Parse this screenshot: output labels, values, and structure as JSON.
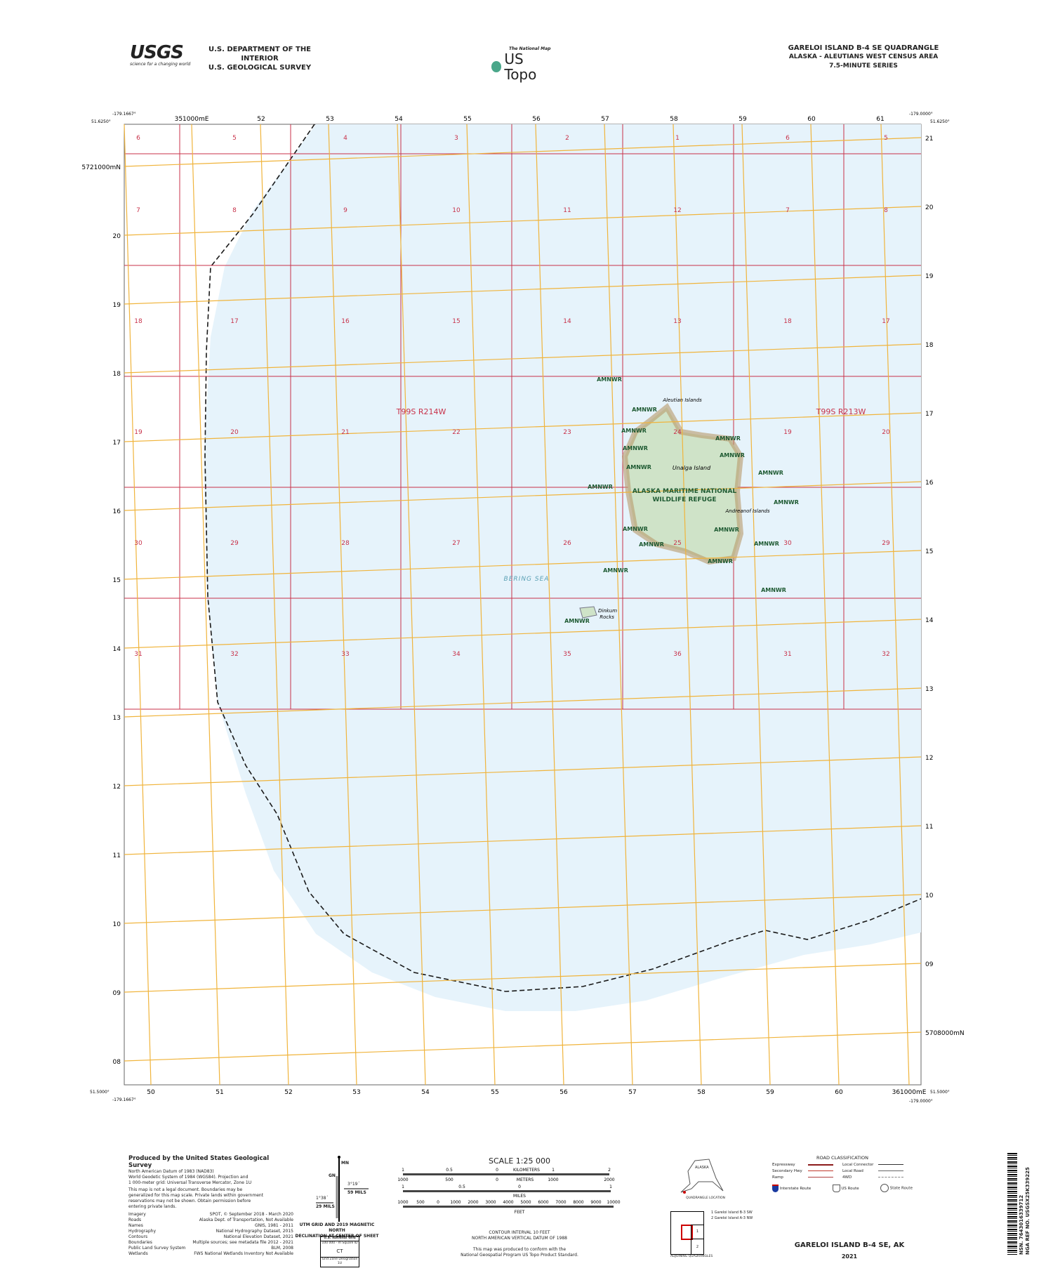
{
  "header": {
    "usgs_logo": "USGS",
    "usgs_tagline": "science for a changing world",
    "dept": "U.S. DEPARTMENT OF THE INTERIOR",
    "survey": "U.S. GEOLOGICAL SURVEY",
    "ustopo_small": "The National Map",
    "ustopo": "US Topo",
    "title": "GARELOI ISLAND B-4 SE QUADRANGLE",
    "subtitle": "ALASKA - ALEUTIANS WEST CENSUS AREA",
    "series": "7.5-MINUTE SERIES"
  },
  "corners": {
    "top_left_lon": "-179.1667°",
    "top_left_lat": "51.6250°",
    "top_right_lon": "-179.0000°",
    "top_right_lat": "51.6250°",
    "bottom_left_lat": "51.5000°",
    "bottom_left_lon": "-179.1667°",
    "bottom_right_lon": "-179.0000°",
    "bottom_right_lat": "51.5000°"
  },
  "grid": {
    "top_eastings": [
      "351000mE",
      "52",
      "53",
      "54",
      "55",
      "56",
      "57",
      "58",
      "59",
      "60",
      "61"
    ],
    "bottom_eastings": [
      "50",
      "51",
      "52",
      "53",
      "54",
      "55",
      "56",
      "57",
      "58",
      "59",
      "60",
      "361000mE"
    ],
    "right_northings": [
      "21",
      "20",
      "19",
      "18",
      "17",
      "16",
      "15",
      "14",
      "13",
      "12",
      "11",
      "10",
      "09",
      "5708000mN"
    ],
    "left_northings": [
      "5721000mN",
      "20",
      "19",
      "18",
      "17",
      "16",
      "15",
      "14",
      "13",
      "12",
      "11",
      "10",
      "09",
      "08"
    ]
  },
  "sections": [
    [
      "6",
      "5",
      "4",
      "3",
      "2",
      "1",
      "6",
      "5"
    ],
    [
      "7",
      "8",
      "9",
      "10",
      "11",
      "12",
      "7",
      "8"
    ],
    [
      "18",
      "17",
      "16",
      "15",
      "14",
      "13",
      "18",
      "17"
    ],
    [
      "19",
      "20",
      "21",
      "22",
      "23",
      "24",
      "19",
      "20"
    ],
    [
      "30",
      "29",
      "28",
      "27",
      "26",
      "25",
      "30",
      "29"
    ],
    [
      "31",
      "32",
      "33",
      "34",
      "35",
      "36",
      "31",
      "32"
    ]
  ],
  "townships": [
    "T99S R214W",
    "T99S R213W"
  ],
  "features": {
    "island": "Unalga Island",
    "aleutian": "Aleutian Islands",
    "andreanof": "Andreanof Islands",
    "refuge_1": "ALASKA MARITIME NATIONAL",
    "refuge_2": "WILDLIFE REFUGE",
    "sea": "BERING SEA",
    "dinkum": "Dinkum Rocks",
    "amnwr": "AMNWR"
  },
  "colors": {
    "water": "#e6f3fb",
    "land": "#dcebd6",
    "plss": "#c8324a",
    "utm": "#f0b43c",
    "boundary": "#1a1a1a",
    "refuge_text": "#1e5a32"
  },
  "footer": {
    "produced": "Produced by the United States Geological Survey",
    "datum": [
      "North American Datum of 1983 (NAD83)",
      "World Geodetic System of 1984 (WGS84). Projection and",
      "1 000-meter grid: Universal Transverse Mercator, Zone 1U"
    ],
    "legal": [
      "This map is not a legal document. Boundaries may be",
      "generalized for this map scale. Private lands within government",
      "reservations may not be shown. Obtain permission before",
      "entering private lands."
    ],
    "sources": [
      [
        "Imagery",
        "SPOT, © September 2018 - March 2020"
      ],
      [
        "Roads",
        "Alaska Dept. of Transportation, Not Available"
      ],
      [
        "Names",
        "GNIS, 1981 - 2011"
      ],
      [
        "Hydrography",
        "National Hydrography Dataset, 2015"
      ],
      [
        "Contours",
        "National Elevation Dataset, 2021"
      ],
      [
        "Boundaries",
        "Multiple sources; see metadata file 2012 - 2021"
      ],
      [
        "Public Land Survey System",
        "BLM, 2008"
      ],
      [
        "Wetlands",
        "FWS National Wetlands Inventory Not Available"
      ]
    ],
    "decl": {
      "mn": "MN",
      "gn": "GN",
      "left_angle": "1°38´",
      "left_mils": "29 MILS",
      "right_angle": "3°19´",
      "right_mils": "59 MILS",
      "caption1": "UTM GRID AND 2019 MAGNETIC NORTH",
      "caption2": "DECLINATION AT CENTER OF SHEET"
    },
    "usng": {
      "title": "U.S. National Grid",
      "sub": "100 000 - m Square ID",
      "id": "CT",
      "gzd_label": "Grid Zone Designation",
      "gzd": "1U"
    },
    "scale": {
      "title": "SCALE 1:25 000",
      "km_ticks": [
        "1",
        "0.5",
        "0",
        "1",
        "2"
      ],
      "km": "KILOMETERS",
      "m_ticks": [
        "1000",
        "500",
        "0",
        "1000",
        "2000"
      ],
      "m": "METERS",
      "mi_ticks": [
        "1",
        "0.5",
        "0",
        "1"
      ],
      "mi": "MILES",
      "ft_ticks": [
        "1000",
        "500",
        "0",
        "1000",
        "2000",
        "3000",
        "4000",
        "5000",
        "6000",
        "7000",
        "8000",
        "9000",
        "10000"
      ],
      "ft": "FEET"
    },
    "contour1": "CONTOUR INTERVAL 10 FEET",
    "contour2": "NORTH AMERICAN VERTICAL DATUM OF 1988",
    "conform1": "This map was produced to conform with the",
    "conform2": "National Geospatial Program US Topo Product Standard.",
    "alaska": "ALASKA",
    "quad_loc": "QUADRANGLE LOCATION",
    "adjoining": [
      "1 Gareloi Island B-3 SW",
      "2 Gareloi Island A-3 NW"
    ],
    "adj_nums": [
      "1",
      "2"
    ],
    "adj_label": "ADJOINING QUADRANGLES",
    "roads": {
      "title": "ROAD CLASSIFICATION",
      "items": [
        "Expressway",
        "Secondary Hwy",
        "Ramp",
        "Local Connector",
        "Local Road",
        "4WD"
      ],
      "routes": [
        "Interstate Route",
        "US Route",
        "State Route"
      ]
    },
    "quad_name": "GARELOI ISLAND B-4 SE,  AK",
    "year": "2021",
    "barcode_nsn": "NSN. 7643016339712",
    "barcode_ref": "NGA REF NO. USGSX25K339225"
  }
}
